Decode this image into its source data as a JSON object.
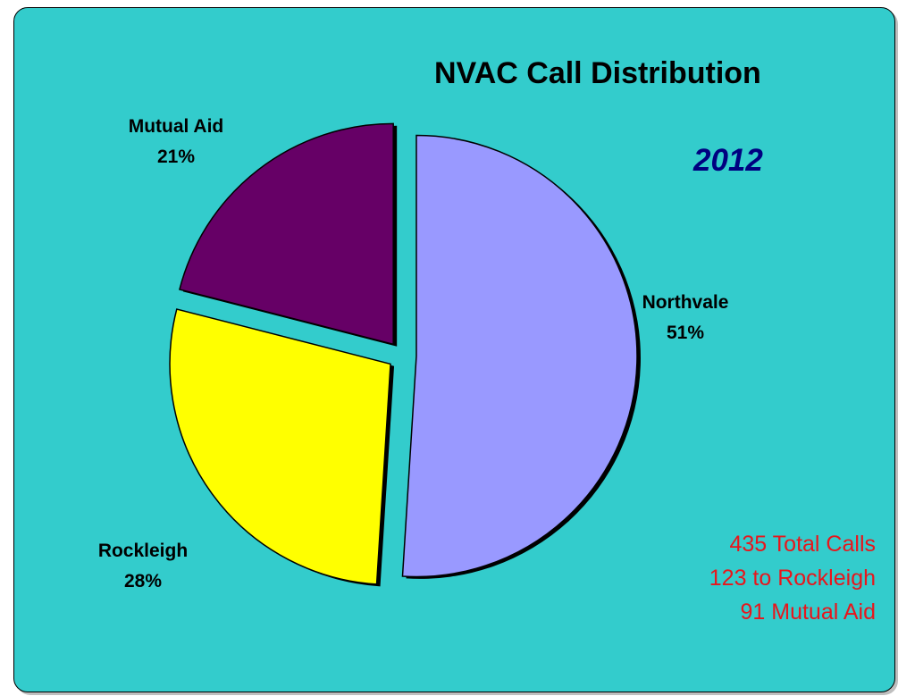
{
  "chart_data": {
    "type": "pie",
    "title": "NVAC Call Distribution",
    "subtitle": "2012",
    "slices": [
      {
        "label": "Northvale",
        "percent_label": "51%",
        "value": 51,
        "color": "#9999ff"
      },
      {
        "label": "Rockleigh",
        "percent_label": "28%",
        "value": 28,
        "color": "#ffff00"
      },
      {
        "label": "Mutual Aid",
        "percent_label": "21%",
        "value": 21,
        "color": "#660066"
      }
    ],
    "exploded": true,
    "background_color": "#33cccc"
  },
  "annotations": {
    "line1": "435 Total Calls",
    "line2": "123 to Rockleigh",
    "line3": "91 Mutual Aid",
    "color": "#e8161c"
  }
}
